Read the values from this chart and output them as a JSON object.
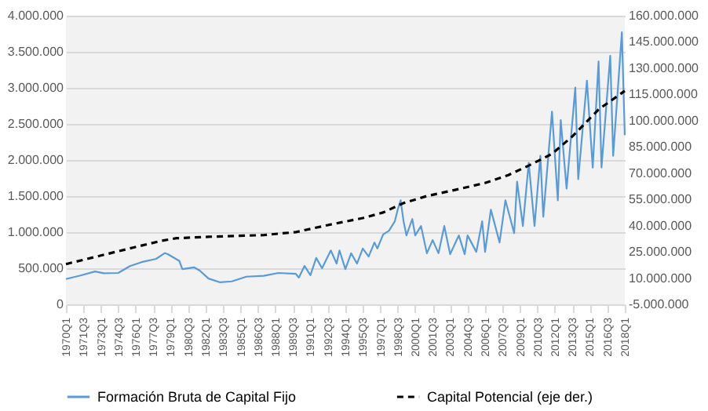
{
  "chart_data": {
    "type": "line",
    "xlim": [
      "1970-01",
      "2018-01"
    ],
    "xticks": [
      {
        "value": "1970-01",
        "label": "1970Q1"
      },
      {
        "value": "1971-07",
        "label": "1971Q3"
      },
      {
        "value": "1973-01",
        "label": "1973Q1"
      },
      {
        "value": "1974-07",
        "label": "1974Q3"
      },
      {
        "value": "1976-01",
        "label": "1976Q1"
      },
      {
        "value": "1977-07",
        "label": "1977Q3"
      },
      {
        "value": "1979-01",
        "label": "1979Q1"
      },
      {
        "value": "1980-07",
        "label": "1980Q3"
      },
      {
        "value": "1982-01",
        "label": "1982Q1"
      },
      {
        "value": "1983-07",
        "label": "1983Q3"
      },
      {
        "value": "1985-01",
        "label": "1985Q1"
      },
      {
        "value": "1986-07",
        "label": "1986Q3"
      },
      {
        "value": "1988-01",
        "label": "1988Q1"
      },
      {
        "value": "1989-07",
        "label": "1989Q3"
      },
      {
        "value": "1991-01",
        "label": "1991Q1"
      },
      {
        "value": "1992-07",
        "label": "1992Q3"
      },
      {
        "value": "1994-01",
        "label": "1994Q1"
      },
      {
        "value": "1995-07",
        "label": "1995Q3"
      },
      {
        "value": "1997-01",
        "label": "1997Q1"
      },
      {
        "value": "1998-07",
        "label": "1998Q3"
      },
      {
        "value": "2000-01",
        "label": "2000Q1"
      },
      {
        "value": "2001-07",
        "label": "2001Q3"
      },
      {
        "value": "2003-01",
        "label": "2003Q1"
      },
      {
        "value": "2004-07",
        "label": "2004Q3"
      },
      {
        "value": "2006-01",
        "label": "2006Q1"
      },
      {
        "value": "2007-07",
        "label": "2007Q3"
      },
      {
        "value": "2009-01",
        "label": "2009Q1"
      },
      {
        "value": "2010-07",
        "label": "2010Q3"
      },
      {
        "value": "2012-01",
        "label": "2012Q1"
      },
      {
        "value": "2013-07",
        "label": "2013Q3"
      },
      {
        "value": "2015-01",
        "label": "2015Q1"
      },
      {
        "value": "2016-07",
        "label": "2016Q3"
      },
      {
        "value": "2018-01",
        "label": "2018Q1"
      }
    ],
    "ylim": [
      0,
      4000000
    ],
    "yticks": [
      {
        "value": 0,
        "label": "0"
      },
      {
        "value": 500000,
        "label": "500.000"
      },
      {
        "value": 1000000,
        "label": "1.000.000"
      },
      {
        "value": 1500000,
        "label": "1.500.000"
      },
      {
        "value": 2000000,
        "label": "2.000.000"
      },
      {
        "value": 2500000,
        "label": "2.500.000"
      },
      {
        "value": 3000000,
        "label": "3.000.000"
      },
      {
        "value": 3500000,
        "label": "3.500.000"
      },
      {
        "value": 4000000,
        "label": "4.000.000"
      }
    ],
    "y2lim": [
      -5000000,
      160000000
    ],
    "y2ticks": [
      {
        "value": -5000000,
        "label": "-5.000.000"
      },
      {
        "value": 10000000,
        "label": "10.000.000"
      },
      {
        "value": 25000000,
        "label": "25.000.000"
      },
      {
        "value": 40000000,
        "label": "40.000.000"
      },
      {
        "value": 55000000,
        "label": "55.000.000"
      },
      {
        "value": 70000000,
        "label": "70.000.000"
      },
      {
        "value": 85000000,
        "label": "85.000.000"
      },
      {
        "value": 100000000,
        "label": "100.000.000"
      },
      {
        "value": 115000000,
        "label": "115.000.000"
      },
      {
        "value": 130000000,
        "label": "130.000.000"
      },
      {
        "value": 145000000,
        "label": "145.000.000"
      },
      {
        "value": 160000000,
        "label": "160.000.000"
      }
    ],
    "grid": "y",
    "legend": "bottom",
    "series": [
      {
        "name": "Formación Bruta de Capital Fijo",
        "color": "#5b9bd5",
        "line_style": "solid",
        "x": [
          "1970-01",
          "1971-04",
          "1972-07",
          "1973-04",
          "1974-07",
          "1975-07",
          "1976-07",
          "1977-10",
          "1978-07",
          "1978-10",
          "1979-10",
          "1980-01",
          "1981-01",
          "1981-07",
          "1982-04",
          "1983-04",
          "1984-04",
          "1985-07",
          "1987-01",
          "1988-04",
          "1989-10",
          "1990-01",
          "1990-07",
          "1991-01",
          "1991-07",
          "1992-01",
          "1992-10",
          "1993-04",
          "1993-07",
          "1994-01",
          "1994-07",
          "1995-01",
          "1995-07",
          "1996-01",
          "1996-07",
          "1996-10",
          "1997-04",
          "1997-10",
          "1998-04",
          "1998-07",
          "1998-10",
          "1999-01",
          "1999-04",
          "1999-10",
          "2000-01",
          "2000-07",
          "2001-01",
          "2001-07",
          "2002-01",
          "2002-07",
          "2003-01",
          "2003-10",
          "2004-04",
          "2004-07",
          "2005-04",
          "2005-10",
          "2006-01",
          "2006-07",
          "2007-04",
          "2007-10",
          "2008-07",
          "2008-10",
          "2009-04",
          "2009-10",
          "2010-04",
          "2010-10",
          "2011-01",
          "2011-10",
          "2012-04",
          "2012-07",
          "2013-01",
          "2013-10",
          "2014-01",
          "2014-10",
          "2015-04",
          "2015-10",
          "2016-01",
          "2016-10",
          "2017-01",
          "2017-10",
          "2018-01"
        ],
        "values": [
          350000,
          400000,
          455000,
          430000,
          435000,
          530000,
          585000,
          630000,
          710000,
          695000,
          600000,
          487000,
          513000,
          468000,
          357000,
          305000,
          318000,
          383000,
          396000,
          435000,
          422000,
          370000,
          532000,
          403000,
          643000,
          500000,
          747000,
          565000,
          747000,
          487000,
          708000,
          565000,
          773000,
          662000,
          857000,
          773000,
          968000,
          1020000,
          1150000,
          1312000,
          1442000,
          1150000,
          955000,
          1182000,
          955000,
          1085000,
          708000,
          890000,
          708000,
          1085000,
          695000,
          955000,
          695000,
          955000,
          727000,
          1150000,
          727000,
          1312000,
          857000,
          1442000,
          987000,
          1701000,
          1085000,
          1961000,
          1085000,
          2058000,
          1214000,
          2670000,
          1442000,
          2553000,
          1604000,
          3005000,
          1734000,
          3100000,
          1896000,
          3367000,
          1896000,
          3445000,
          2058000,
          3770000,
          2344000
        ]
      },
      {
        "name": "Capital Potencial (eje der.)",
        "color": "#000000",
        "line_style": "dashed",
        "axis": "y2",
        "x": [
          "1970-01",
          "1973-01",
          "1975-10",
          "1978-04",
          "1979-07",
          "1982-04",
          "1987-01",
          "1989-10",
          "1992-07",
          "1995-07",
          "1997-04",
          "1999-01",
          "2001-01",
          "2003-10",
          "2006-01",
          "2008-01",
          "2009-10",
          "2011-10",
          "2013-07",
          "2015-10",
          "2018-01"
        ],
        "values": [
          18000000,
          22900000,
          27400000,
          31400000,
          32800000,
          33600000,
          34600000,
          36300000,
          40300000,
          44300000,
          47500000,
          52900000,
          56900000,
          60900000,
          64400000,
          68900000,
          74300000,
          81000000,
          91000000,
          106400000,
          117000000
        ]
      }
    ]
  }
}
